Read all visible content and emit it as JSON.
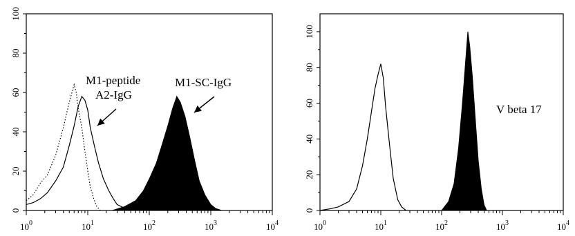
{
  "chart_data": [
    {
      "type": "area",
      "title": "",
      "xlabel": "",
      "ylabel": "",
      "xscale": "log",
      "xlim": [
        1,
        10000
      ],
      "ylim": [
        0,
        100
      ],
      "x_ticks": [
        {
          "base": "10",
          "exp": "0"
        },
        {
          "base": "10",
          "exp": "1"
        },
        {
          "base": "10",
          "exp": "2"
        },
        {
          "base": "10",
          "exp": "3"
        },
        {
          "base": "10",
          "exp": "4"
        }
      ],
      "y_ticks": [
        "0",
        "20",
        "40",
        "60",
        "80",
        "100"
      ],
      "grid": false,
      "series": [
        {
          "style": "dotted-line",
          "x": [
            1,
            1.3,
            1.7,
            2.2,
            3,
            4,
            5,
            6,
            6.5,
            7,
            8,
            9,
            10,
            11,
            12.5,
            14,
            16
          ],
          "y": [
            5,
            8,
            14,
            18,
            28,
            42,
            55,
            64,
            60,
            52,
            42,
            30,
            20,
            12,
            6,
            2,
            0
          ]
        },
        {
          "style": "solid-line",
          "x": [
            1,
            1.3,
            1.7,
            2.2,
            3,
            4,
            5,
            6,
            7,
            8,
            9,
            10,
            11,
            13,
            15,
            18,
            22,
            26,
            30,
            35,
            40
          ],
          "y": [
            3,
            4,
            6,
            9,
            15,
            22,
            33,
            43,
            53,
            58,
            56,
            51,
            42,
            32,
            24,
            16,
            10,
            6,
            3,
            2,
            1
          ]
        },
        {
          "style": "filled",
          "x": [
            25,
            40,
            60,
            80,
            100,
            130,
            160,
            200,
            240,
            280,
            320,
            380,
            450,
            550,
            650,
            800,
            1000,
            1200,
            1500
          ],
          "y": [
            0,
            2,
            5,
            10,
            16,
            24,
            33,
            43,
            52,
            58,
            55,
            48,
            38,
            25,
            15,
            8,
            3,
            1,
            0
          ]
        }
      ],
      "annotations": [
        {
          "text": "M1-peptide",
          "target": "solid-line"
        },
        {
          "text": "A2-IgG",
          "target": "solid-line"
        },
        {
          "text": "M1-SC-IgG",
          "target": "filled"
        }
      ]
    },
    {
      "type": "area",
      "title": "",
      "xlabel": "",
      "ylabel": "",
      "xscale": "log",
      "xlim": [
        1,
        10000
      ],
      "ylim": [
        0,
        110
      ],
      "x_ticks": [
        {
          "base": "10",
          "exp": "0"
        },
        {
          "base": "10",
          "exp": "1"
        },
        {
          "base": "10",
          "exp": "2"
        },
        {
          "base": "10",
          "exp": "3"
        },
        {
          "base": "10",
          "exp": "4"
        }
      ],
      "y_ticks": [
        "0",
        "20",
        "40",
        "60",
        "80",
        "100"
      ],
      "grid": false,
      "series": [
        {
          "style": "solid-line",
          "x": [
            1,
            1.5,
            2,
            3,
            4,
            5,
            6,
            7,
            8,
            9,
            10,
            11,
            12,
            14,
            16,
            19,
            22,
            26
          ],
          "y": [
            0,
            1,
            2,
            5,
            12,
            25,
            40,
            55,
            68,
            76,
            82,
            74,
            58,
            36,
            18,
            6,
            2,
            0
          ]
        },
        {
          "style": "filled",
          "x": [
            100,
            130,
            160,
            190,
            220,
            250,
            270,
            290,
            320,
            360,
            400,
            450,
            500,
            550
          ],
          "y": [
            0,
            5,
            15,
            35,
            60,
            85,
            100,
            92,
            75,
            50,
            28,
            12,
            3,
            0
          ]
        }
      ],
      "annotations": [
        {
          "text": "V beta 17",
          "target": "filled"
        }
      ]
    }
  ]
}
